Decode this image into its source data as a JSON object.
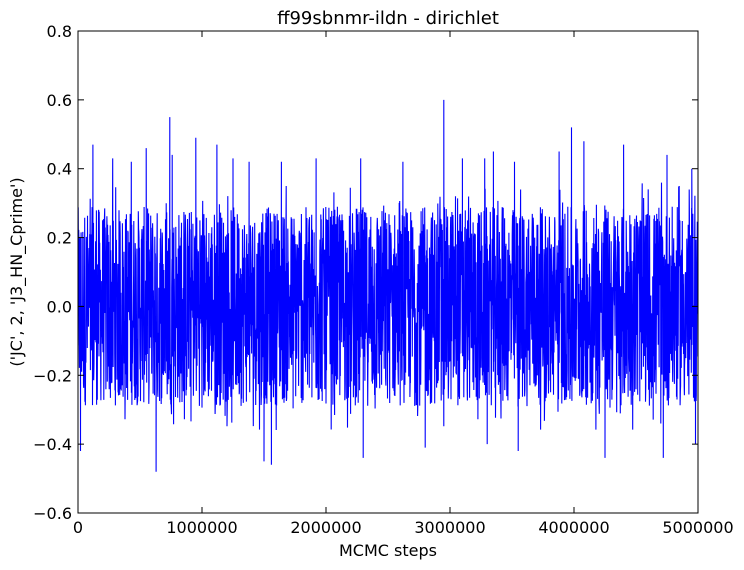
{
  "chart_data": {
    "type": "line",
    "title": "ff99sbnmr-ildn - dirichlet",
    "xlabel": "MCMC steps",
    "ylabel": "('JC', 2, 'J3_HN_Cprime')",
    "xlim": [
      0,
      5000000
    ],
    "ylim": [
      -0.6,
      0.8
    ],
    "xticks": [
      0,
      1000000,
      2000000,
      3000000,
      4000000,
      5000000
    ],
    "xtick_labels": [
      "0",
      "1000000",
      "2000000",
      "3000000",
      "4000000",
      "5000000"
    ],
    "yticks": [
      -0.6,
      -0.4,
      -0.2,
      0.0,
      0.2,
      0.4,
      0.6,
      0.8
    ],
    "ytick_labels": [
      "−0.6",
      "−0.4",
      "−0.2",
      "0.0",
      "0.2",
      "0.4",
      "0.6",
      "0.8"
    ],
    "grid": false,
    "legend": "none",
    "series": [
      {
        "color": "#0000ff",
        "description": "MCMC trace, noise band roughly -0.3 to 0.3",
        "band_typical": [
          -0.29,
          0.29
        ],
        "spikes": [
          {
            "x": 20000,
            "y": -0.42
          },
          {
            "x": 120000,
            "y": 0.47
          },
          {
            "x": 280000,
            "y": 0.43
          },
          {
            "x": 430000,
            "y": 0.42
          },
          {
            "x": 550000,
            "y": 0.46
          },
          {
            "x": 630000,
            "y": -0.48
          },
          {
            "x": 740000,
            "y": 0.55
          },
          {
            "x": 760000,
            "y": 0.44
          },
          {
            "x": 950000,
            "y": 0.49
          },
          {
            "x": 1120000,
            "y": 0.47
          },
          {
            "x": 1250000,
            "y": 0.43
          },
          {
            "x": 1380000,
            "y": 0.42
          },
          {
            "x": 1500000,
            "y": -0.45
          },
          {
            "x": 1560000,
            "y": -0.46
          },
          {
            "x": 1640000,
            "y": 0.42
          },
          {
            "x": 1920000,
            "y": 0.43
          },
          {
            "x": 2280000,
            "y": 0.43
          },
          {
            "x": 2300000,
            "y": -0.44
          },
          {
            "x": 2620000,
            "y": 0.42
          },
          {
            "x": 2800000,
            "y": -0.41
          },
          {
            "x": 2950000,
            "y": 0.6
          },
          {
            "x": 3100000,
            "y": 0.43
          },
          {
            "x": 3280000,
            "y": 0.43
          },
          {
            "x": 3300000,
            "y": -0.4
          },
          {
            "x": 3350000,
            "y": 0.45
          },
          {
            "x": 3520000,
            "y": 0.42
          },
          {
            "x": 3550000,
            "y": -0.42
          },
          {
            "x": 3880000,
            "y": 0.45
          },
          {
            "x": 3980000,
            "y": 0.52
          },
          {
            "x": 4080000,
            "y": 0.48
          },
          {
            "x": 4250000,
            "y": -0.44
          },
          {
            "x": 4400000,
            "y": 0.47
          },
          {
            "x": 4750000,
            "y": 0.44
          },
          {
            "x": 4720000,
            "y": -0.44
          },
          {
            "x": 4950000,
            "y": 0.4
          },
          {
            "x": 4980000,
            "y": -0.4
          }
        ]
      }
    ]
  }
}
